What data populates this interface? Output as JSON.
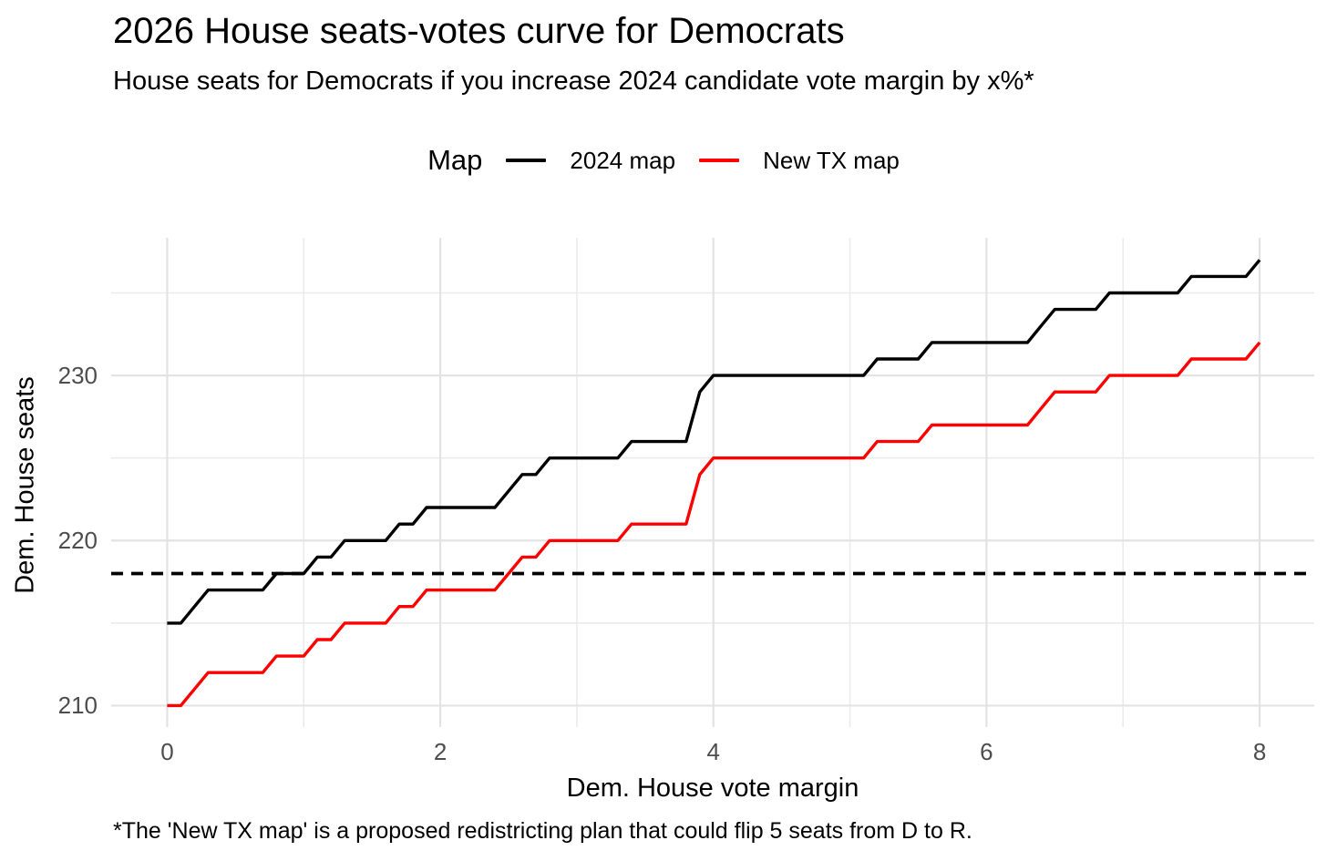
{
  "header": {
    "title": "2026 House seats-votes curve for Democrats",
    "subtitle": "House seats for Democrats if you increase 2024 candidate vote margin by x%*"
  },
  "legend": {
    "title": "Map",
    "items": [
      {
        "label": "2024 map",
        "color": "#000000"
      },
      {
        "label": "New TX map",
        "color": "#FF0000"
      }
    ]
  },
  "axes": {
    "x": {
      "title": "Dem. House vote margin"
    },
    "y": {
      "title": "Dem. House seats"
    }
  },
  "caption": "*The 'New TX map' is a proposed redistricting plan that could flip 5 seats from D to R.",
  "colors": {
    "grid_major": "#E3E3E3",
    "grid_minor": "#EBEBEB",
    "tick_text": "#4D4D4D",
    "threshold": "#000000"
  },
  "chart_data": {
    "type": "line",
    "title": "2026 House seats-votes curve for Democrats",
    "xlabel": "Dem. House vote margin",
    "ylabel": "Dem. House seats",
    "x_start": 0,
    "x_step": 0.1,
    "xlim": [
      -0.41,
      8.4
    ],
    "ylim": [
      208.7,
      238.34
    ],
    "x_ticks": [
      0,
      2,
      4,
      6,
      8
    ],
    "x_minor_gridlines": [
      1,
      3,
      5,
      7
    ],
    "y_ticks": [
      210,
      220,
      230
    ],
    "y_minor_gridlines": [
      215,
      225,
      235
    ],
    "grid": true,
    "legend_position": "top",
    "threshold_line": {
      "y": 218,
      "style": "dashed",
      "color": "#000000",
      "meaning": "majority threshold"
    },
    "series": [
      {
        "name": "2024 map",
        "color": "#000000",
        "values": [
          215,
          215,
          216,
          217,
          217,
          217,
          217,
          217,
          218,
          218,
          218,
          219,
          219,
          220,
          220,
          220,
          220,
          221,
          221,
          222,
          222,
          222,
          222,
          222,
          222,
          223,
          224,
          224,
          225,
          225,
          225,
          225,
          225,
          225,
          226,
          226,
          226,
          226,
          226,
          229,
          230,
          230,
          230,
          230,
          230,
          230,
          230,
          230,
          230,
          230,
          230,
          230,
          231,
          231,
          231,
          231,
          232,
          232,
          232,
          232,
          232,
          232,
          232,
          232,
          233,
          234,
          234,
          234,
          234,
          235,
          235,
          235,
          235,
          235,
          235,
          236,
          236,
          236,
          236,
          236,
          237
        ]
      },
      {
        "name": "New TX map",
        "color": "#FF0000",
        "values": [
          210,
          210,
          211,
          212,
          212,
          212,
          212,
          212,
          213,
          213,
          213,
          214,
          214,
          215,
          215,
          215,
          215,
          216,
          216,
          217,
          217,
          217,
          217,
          217,
          217,
          218,
          219,
          219,
          220,
          220,
          220,
          220,
          220,
          220,
          221,
          221,
          221,
          221,
          221,
          224,
          225,
          225,
          225,
          225,
          225,
          225,
          225,
          225,
          225,
          225,
          225,
          225,
          226,
          226,
          226,
          226,
          227,
          227,
          227,
          227,
          227,
          227,
          227,
          227,
          228,
          229,
          229,
          229,
          229,
          230,
          230,
          230,
          230,
          230,
          230,
          231,
          231,
          231,
          231,
          231,
          232
        ]
      }
    ]
  }
}
